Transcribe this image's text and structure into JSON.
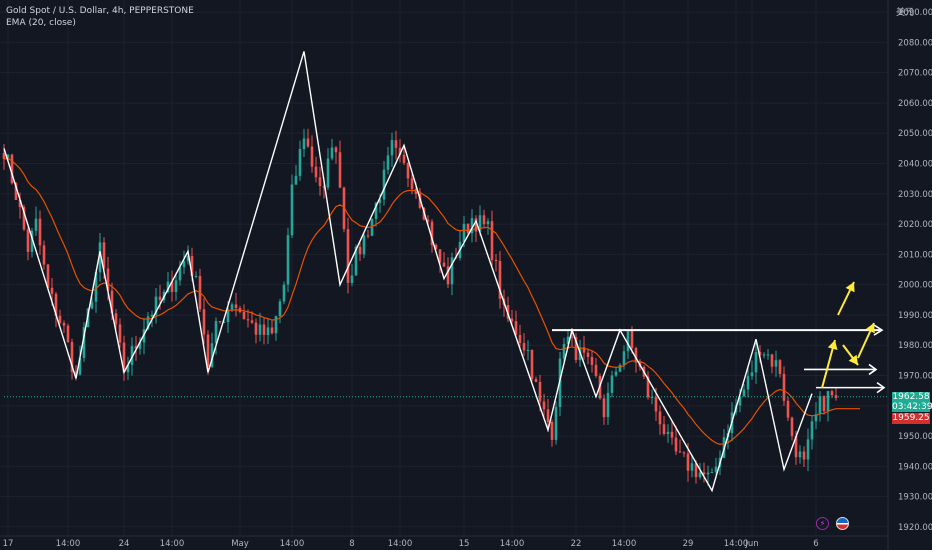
{
  "header": {
    "title": "Gold Spot / U.S. Dollar, 4h, PEPPERSTONE",
    "indicator": "EMA (20, close)",
    "currency": "美元"
  },
  "price_tags": {
    "current_price": "1962.58",
    "countdown": "03:42:39",
    "ema_value": "1959.25"
  },
  "chart_data": {
    "type": "candlestick",
    "symbol": "XAUUSD",
    "timeframe": "4h",
    "ylim": [
      1917,
      2094
    ],
    "y_ticks": [
      1920,
      1930,
      1940,
      1950,
      1960,
      1970,
      1980,
      1990,
      2000,
      2010,
      2020,
      2030,
      2040,
      2050,
      2060,
      2070,
      2080,
      2090
    ],
    "x_ticks": [
      {
        "label": "17",
        "bar": 1
      },
      {
        "label": "14:00",
        "bar": 16
      },
      {
        "label": "24",
        "bar": 30
      },
      {
        "label": "14:00",
        "bar": 42
      },
      {
        "label": "May",
        "bar": 59
      },
      {
        "label": "14:00",
        "bar": 72
      },
      {
        "label": "8",
        "bar": 87
      },
      {
        "label": "14:00",
        "bar": 99
      },
      {
        "label": "15",
        "bar": 115
      },
      {
        "label": "14:00",
        "bar": 127
      },
      {
        "label": "22",
        "bar": 143
      },
      {
        "label": "14:00",
        "bar": 155
      },
      {
        "label": "29",
        "bar": 171
      },
      {
        "label": "14:00",
        "bar": 183
      },
      {
        "label": "Jun",
        "bar": 187
      },
      {
        "label": "6",
        "bar": 203
      }
    ],
    "bar_count": 222,
    "anchors": [
      [
        0,
        2045
      ],
      [
        3,
        2030
      ],
      [
        6,
        2012
      ],
      [
        8,
        2020
      ],
      [
        11,
        1998
      ],
      [
        15,
        1985
      ],
      [
        18,
        1969
      ],
      [
        21,
        1990
      ],
      [
        24,
        2011
      ],
      [
        27,
        1990
      ],
      [
        30,
        1972
      ],
      [
        33,
        1980
      ],
      [
        36,
        1990
      ],
      [
        40,
        1996
      ],
      [
        46,
        2010
      ],
      [
        49,
        1995
      ],
      [
        51,
        1974
      ],
      [
        53,
        1985
      ],
      [
        57,
        1995
      ],
      [
        61,
        1988
      ],
      [
        64,
        1984
      ],
      [
        67,
        1983
      ],
      [
        70,
        2000
      ],
      [
        72,
        2030
      ],
      [
        75,
        2050
      ],
      [
        77,
        2040
      ],
      [
        80,
        2030
      ],
      [
        82,
        2048
      ],
      [
        84,
        2035
      ],
      [
        86,
        2003
      ],
      [
        89,
        2012
      ],
      [
        92,
        2022
      ],
      [
        95,
        2035
      ],
      [
        97,
        2045
      ],
      [
        99,
        2040
      ],
      [
        102,
        2035
      ],
      [
        105,
        2025
      ],
      [
        108,
        2010
      ],
      [
        111,
        2002
      ],
      [
        114,
        2015
      ],
      [
        117,
        2022
      ],
      [
        121,
        2018
      ],
      [
        123,
        2005
      ],
      [
        125,
        1990
      ],
      [
        128,
        1985
      ],
      [
        131,
        1978
      ],
      [
        134,
        1960
      ],
      [
        137,
        1952
      ],
      [
        140,
        1983
      ],
      [
        142,
        1980
      ],
      [
        145,
        1975
      ],
      [
        148,
        1968
      ],
      [
        150,
        1958
      ],
      [
        153,
        1972
      ],
      [
        156,
        1982
      ],
      [
        159,
        1972
      ],
      [
        161,
        1964
      ],
      [
        164,
        1956
      ],
      [
        166,
        1948
      ],
      [
        169,
        1942
      ],
      [
        172,
        1940
      ],
      [
        175,
        1937
      ],
      [
        177,
        1935
      ],
      [
        180,
        1950
      ],
      [
        183,
        1960
      ],
      [
        186,
        1968
      ],
      [
        189,
        1980
      ],
      [
        192,
        1975
      ],
      [
        194,
        1972
      ],
      [
        196,
        1955
      ],
      [
        198,
        1946
      ],
      [
        200,
        1940
      ],
      [
        202,
        1952
      ],
      [
        204,
        1960
      ],
      [
        206,
        1963
      ],
      [
        208,
        1962.58
      ]
    ],
    "pivots": [
      [
        0,
        2045
      ],
      [
        18,
        1969
      ],
      [
        24,
        2011
      ],
      [
        30,
        1971
      ],
      [
        46,
        2011
      ],
      [
        51,
        1971
      ],
      [
        75,
        2077
      ],
      [
        84,
        2000
      ],
      [
        100,
        2046
      ],
      [
        110,
        2002
      ],
      [
        118,
        2021
      ],
      [
        136,
        1952
      ],
      [
        142,
        1985
      ],
      [
        148,
        1963
      ],
      [
        154,
        1985
      ],
      [
        177,
        1932
      ],
      [
        188,
        1982
      ],
      [
        195,
        1939
      ],
      [
        202,
        1964
      ]
    ],
    "horizontal_levels": [
      {
        "value": 1985,
        "from_bar": 137,
        "to_bar": 222
      },
      {
        "value": 1963,
        "from_bar": 0,
        "to_bar": 222
      }
    ],
    "projection_arrows": [
      {
        "from": [
          1974,
          1961
        ],
        "to": [
          1980,
          1981
        ],
        "color": "#ffeb3b"
      },
      {
        "from": [
          1975,
          1982
        ],
        "to": [
          1980,
          1990
        ],
        "color": "#ffeb3b"
      },
      {
        "from": [
          1978,
          1975
        ],
        "to": [
          1984,
          1983
        ],
        "color": "#ffeb3b"
      },
      {
        "from": [
          1982,
          1983
        ],
        "to": [
          1988,
          1975
        ],
        "color": "#ffeb3b"
      }
    ],
    "ema": {
      "period": 20,
      "source": "close",
      "color": "#e65100"
    },
    "colors": {
      "up": "#26a69a",
      "down": "#ef5350",
      "zigzag": "#ffffff",
      "grid": "#1e222d"
    }
  }
}
